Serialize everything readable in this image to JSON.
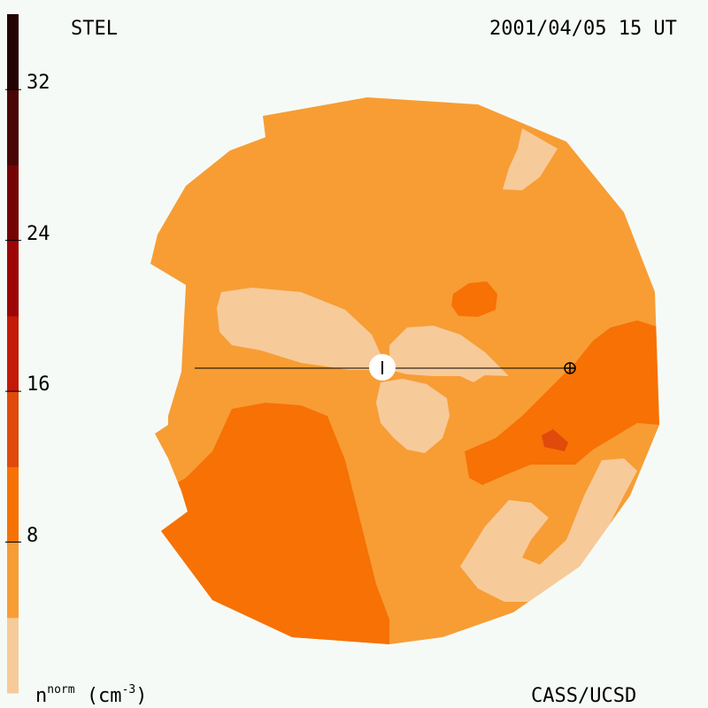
{
  "header": {
    "instrument": "STEL",
    "timestamp": "2001/04/05 15 UT"
  },
  "footer": {
    "credit": "CASS/UCSD"
  },
  "colorbar": {
    "units_base": "n",
    "units_super": "norm",
    "units_paren_open": "(cm",
    "units_exp": "-3",
    "units_paren_close": ")",
    "ticks": [
      "32",
      "24",
      "16",
      "8"
    ],
    "tick_values": [
      32,
      24,
      16,
      8
    ],
    "range": [
      0,
      36
    ],
    "bands": [
      {
        "from": 0,
        "to": 4,
        "color": "#f7ca9a"
      },
      {
        "from": 4,
        "to": 8,
        "color": "#f79d34"
      },
      {
        "from": 8,
        "to": 12,
        "color": "#f77105"
      },
      {
        "from": 12,
        "to": 16,
        "color": "#e04a0a"
      },
      {
        "from": 16,
        "to": 20,
        "color": "#c41a08"
      },
      {
        "from": 20,
        "to": 24,
        "color": "#9c0606"
      },
      {
        "from": 24,
        "to": 28,
        "color": "#740404"
      },
      {
        "from": 28,
        "to": 32,
        "color": "#4a0505"
      },
      {
        "from": 32,
        "to": 36,
        "color": "#240303"
      }
    ]
  },
  "colors": {
    "background": "#f6faf6",
    "level_0_4": "#f7ca9a",
    "level_4_8": "#f79d34",
    "level_8_12": "#f77105",
    "level_12_16": "#e04a0a",
    "sun": "#ffffff",
    "line": "#000000"
  },
  "map": {
    "sun_symbol": "sun-icon",
    "earth_symbol": "earth-icon"
  }
}
